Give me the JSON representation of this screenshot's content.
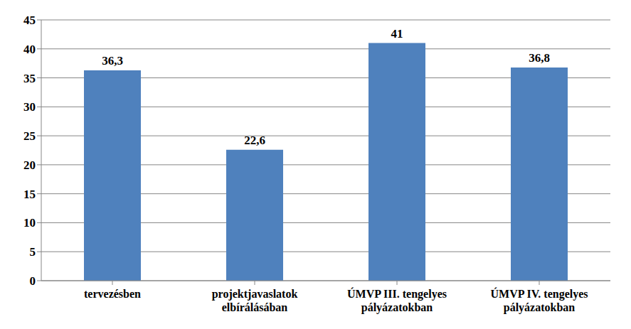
{
  "chart_data": {
    "type": "bar",
    "categories": [
      "tervezésben",
      "projektjavaslatok elbírálásában",
      "ÚMVP III. tengelyes pályázatokban",
      "ÚMVP IV. tengelyes pályázatokban"
    ],
    "values": [
      36.3,
      22.6,
      41,
      36.8
    ],
    "value_labels": [
      "36,3",
      "22,6",
      "41",
      "36,8"
    ],
    "color": "#4f81bd",
    "ylim": [
      0,
      45
    ],
    "yticks": [
      0,
      5,
      10,
      15,
      20,
      25,
      30,
      35,
      40,
      45
    ],
    "grid": true,
    "data_labels": true
  }
}
